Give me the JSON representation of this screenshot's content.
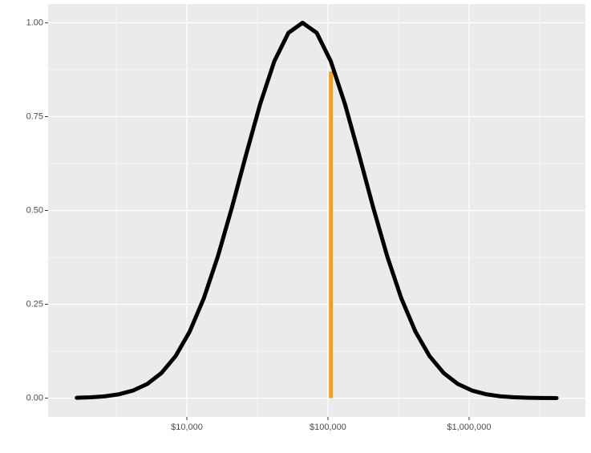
{
  "chart_data": {
    "type": "line",
    "x": [
      1660,
      2089,
      2630,
      3311,
      4169,
      5248,
      6607,
      8318,
      10471,
      13183,
      16596,
      20893,
      26303,
      33113,
      41687,
      52481,
      66069,
      83176,
      104713,
      131826,
      165959,
      208930,
      263027,
      331131,
      416869,
      524807,
      660693,
      831764,
      1047129,
      1318257,
      1659587,
      2089296,
      2630268,
      3311311,
      4168694
    ],
    "series": [
      {
        "color": "#000000",
        "values": [
          0.001,
          0.0023,
          0.005,
          0.0104,
          0.0204,
          0.0379,
          0.0669,
          0.1119,
          0.1772,
          0.2658,
          0.3778,
          0.5087,
          0.6488,
          0.784,
          0.8975,
          0.9733,
          1,
          0.9733,
          0.8975,
          0.784,
          0.6488,
          0.5087,
          0.3778,
          0.2658,
          0.1772,
          0.1119,
          0.0669,
          0.0379,
          0.0204,
          0.0104,
          0.005,
          0.0023,
          0.001,
          0.0004,
          0.0002
        ]
      }
    ],
    "vline": {
      "x": 105000,
      "ymax": 0.87,
      "color": "#f0a01e"
    },
    "xscale": "log",
    "xlim": [
      1040,
      6670000
    ],
    "xticks": [
      {
        "value": 10000,
        "label": "$10,000"
      },
      {
        "value": 100000,
        "label": "$100,000"
      },
      {
        "value": 1000000,
        "label": "$1,000,000"
      }
    ],
    "xminor": [
      3162,
      31623,
      316228,
      3162278
    ],
    "ylim": [
      -0.05,
      1.05
    ],
    "yticks": [
      {
        "value": 0,
        "label": "0.00"
      },
      0.25,
      {
        "value": 0.5,
        "label": "0.50"
      },
      0.75,
      {
        "value": 1,
        "label": "1.00"
      }
    ],
    "yminor": [
      0.125,
      0.375,
      0.625,
      0.875
    ],
    "grid": true
  }
}
